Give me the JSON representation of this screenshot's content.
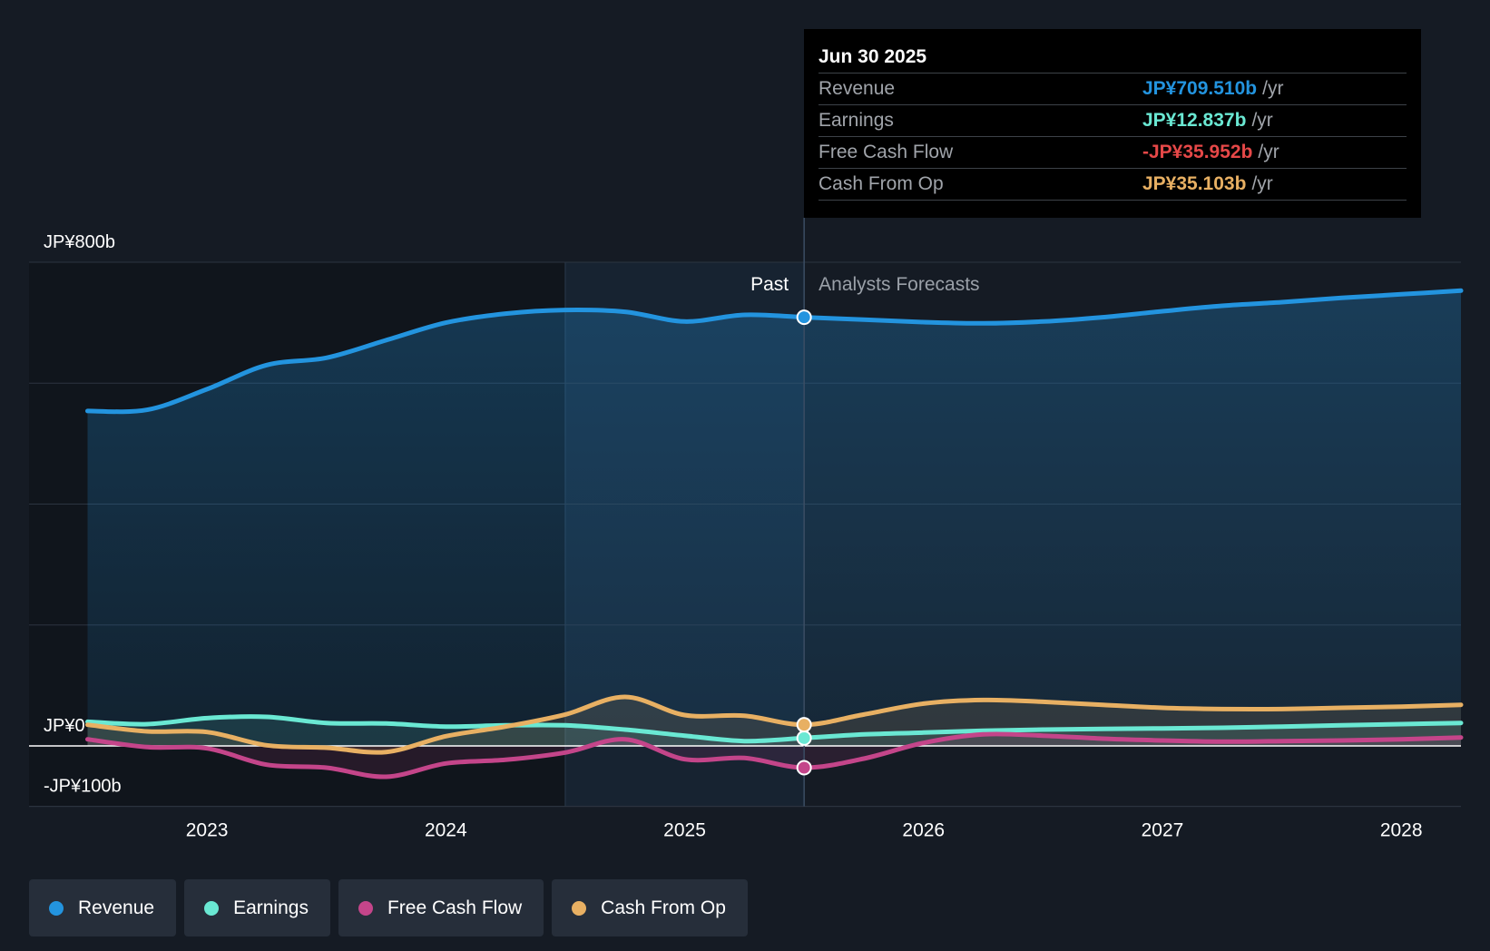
{
  "tooltip": {
    "date": "Jun 30 2025",
    "rows": [
      {
        "label": "Revenue",
        "value": "JP¥709.510b",
        "unit": "/yr",
        "color": "#2394df"
      },
      {
        "label": "Earnings",
        "value": "JP¥12.837b",
        "unit": "/yr",
        "color": "#6ae8d3"
      },
      {
        "label": "Free Cash Flow",
        "value": "-JP¥35.952b",
        "unit": "/yr",
        "color": "#e64848"
      },
      {
        "label": "Cash From Op",
        "value": "JP¥35.103b",
        "unit": "/yr",
        "color": "#e8b063"
      }
    ]
  },
  "legend": [
    {
      "label": "Revenue",
      "color": "#2394df"
    },
    {
      "label": "Earnings",
      "color": "#6ae8d3"
    },
    {
      "label": "Free Cash Flow",
      "color": "#c4458a"
    },
    {
      "label": "Cash From Op",
      "color": "#e8b063"
    }
  ],
  "chart_data": {
    "type": "area",
    "title": "",
    "xlabel": "",
    "ylabel": "",
    "ylim": [
      -100,
      800
    ],
    "xlim": [
      2022.5,
      2028.25
    ],
    "y_tick_labels": [
      {
        "value": 800,
        "label": "JP¥800b"
      },
      {
        "value": 0,
        "label": "JP¥0"
      },
      {
        "value": -100,
        "label": "-JP¥100b"
      }
    ],
    "y_gridlines": [
      800,
      600,
      400,
      200,
      0,
      -100
    ],
    "x_ticks": [
      {
        "value": 2023,
        "label": "2023"
      },
      {
        "value": 2024,
        "label": "2024"
      },
      {
        "value": 2025,
        "label": "2025"
      },
      {
        "value": 2026,
        "label": "2026"
      },
      {
        "value": 2027,
        "label": "2027"
      },
      {
        "value": 2028,
        "label": "2028"
      }
    ],
    "past_label": "Past",
    "forecast_label": "Analysts Forecasts",
    "divider_x": 2025.5,
    "highlight_start_x": 2024.5,
    "tooltip_x": 2025.5,
    "series": [
      {
        "name": "Revenue",
        "color": "#2394df",
        "filled": true,
        "x": [
          2022.5,
          2022.75,
          2023.0,
          2023.25,
          2023.5,
          2023.75,
          2024.0,
          2024.25,
          2024.5,
          2024.75,
          2025.0,
          2025.25,
          2025.5,
          2025.75,
          2026.0,
          2026.25,
          2026.5,
          2026.75,
          2027.0,
          2027.25,
          2027.5,
          2027.75,
          2028.0,
          2028.25
        ],
        "values": [
          554,
          556,
          590,
          630,
          642,
          671,
          700,
          715,
          721,
          718,
          702,
          713,
          709,
          705,
          701,
          699,
          702,
          709,
          719,
          728,
          734,
          741,
          747,
          753
        ]
      },
      {
        "name": "Earnings",
        "color": "#6ae8d3",
        "filled": true,
        "x": [
          2022.5,
          2022.75,
          2023.0,
          2023.25,
          2023.5,
          2023.75,
          2024.0,
          2024.25,
          2024.5,
          2024.75,
          2025.0,
          2025.25,
          2025.5,
          2025.75,
          2026.0,
          2026.25,
          2026.5,
          2026.75,
          2027.0,
          2027.25,
          2027.5,
          2027.75,
          2028.0,
          2028.25
        ],
        "values": [
          40,
          36,
          46,
          48,
          38,
          37,
          32,
          34,
          34,
          27,
          17,
          8,
          13,
          19,
          22,
          25,
          27,
          28,
          29,
          30,
          32,
          34,
          36,
          38
        ]
      },
      {
        "name": "Free Cash Flow",
        "color": "#c4458a",
        "filled": true,
        "x": [
          2022.5,
          2022.75,
          2023.0,
          2023.25,
          2023.5,
          2023.75,
          2024.0,
          2024.25,
          2024.5,
          2024.75,
          2025.0,
          2025.25,
          2025.5,
          2025.75,
          2026.0,
          2026.25,
          2026.5,
          2026.75,
          2027.0,
          2027.25,
          2027.5,
          2027.75,
          2028.0,
          2028.25
        ],
        "values": [
          11,
          -2,
          -4,
          -31,
          -36,
          -51,
          -29,
          -23,
          -11,
          11,
          -22,
          -20,
          -36,
          -21,
          5,
          19,
          17,
          12,
          9,
          7,
          8,
          9,
          11,
          14
        ]
      },
      {
        "name": "Cash From Op",
        "color": "#e8b063",
        "filled": true,
        "x": [
          2022.5,
          2022.75,
          2023.0,
          2023.25,
          2023.5,
          2023.75,
          2024.0,
          2024.25,
          2024.5,
          2024.75,
          2025.0,
          2025.25,
          2025.5,
          2025.75,
          2026.0,
          2026.25,
          2026.5,
          2026.75,
          2027.0,
          2027.25,
          2027.5,
          2027.75,
          2028.0,
          2028.25
        ],
        "values": [
          35,
          24,
          23,
          1,
          -3,
          -10,
          16,
          32,
          52,
          81,
          51,
          50,
          35,
          52,
          70,
          76,
          73,
          68,
          63,
          61,
          61,
          63,
          65,
          68
        ]
      }
    ]
  }
}
